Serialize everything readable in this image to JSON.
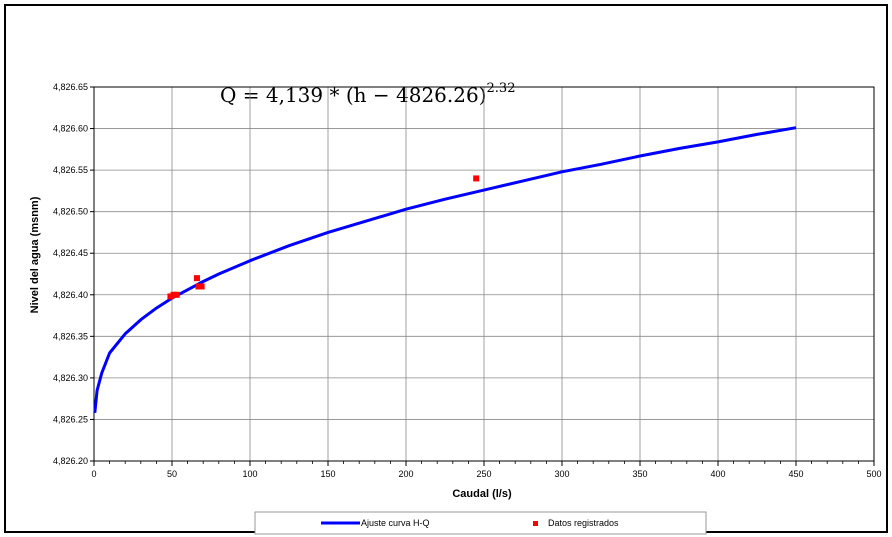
{
  "chart_data": {
    "type": "line",
    "equation": {
      "text": "Q = 4,139 * (h − 4826.26)",
      "exponent": "2.32"
    },
    "xlabel": "Caudal (l/s)",
    "ylabel": "Nivel del agua (msnm)",
    "xlim": [
      0,
      500
    ],
    "ylim": [
      4826.2,
      4826.65
    ],
    "x_ticks": [
      "0",
      "50",
      "100",
      "150",
      "200",
      "250",
      "300",
      "350",
      "400",
      "450",
      "500"
    ],
    "y_ticks": [
      "4,826.20",
      "4,826.25",
      "4,826.30",
      "4,826.35",
      "4,826.40",
      "4,826.45",
      "4,826.50",
      "4,826.55",
      "4,826.60",
      "4,826.65"
    ],
    "grid": true,
    "legend_position": "bottom",
    "series": [
      {
        "name": "Ajuste curva H-Q",
        "kind": "line",
        "color": "#0000ff",
        "x": [
          0.5,
          2,
          5,
          10,
          20,
          30,
          40,
          50,
          60,
          70,
          80,
          100,
          125,
          150,
          175,
          200,
          225,
          250,
          275,
          300,
          325,
          350,
          375,
          400,
          425,
          450
        ],
        "y": [
          4826.258,
          4826.285,
          4826.306,
          4826.33,
          4826.353,
          4826.37,
          4826.384,
          4826.396,
          4826.406,
          4826.416,
          4826.425,
          4826.441,
          4826.459,
          4826.475,
          4826.489,
          4826.503,
          4826.515,
          4826.526,
          4826.537,
          4826.548,
          4826.557,
          4826.567,
          4826.576,
          4826.584,
          4826.593,
          4826.601
        ]
      },
      {
        "name": "Datos registrados",
        "kind": "scatter",
        "color": "#ff0000",
        "x": [
          49,
          51,
          53,
          66,
          67,
          69,
          245
        ],
        "y": [
          4826.398,
          4826.4,
          4826.4,
          4826.42,
          4826.41,
          4826.41,
          4826.54
        ]
      }
    ]
  }
}
